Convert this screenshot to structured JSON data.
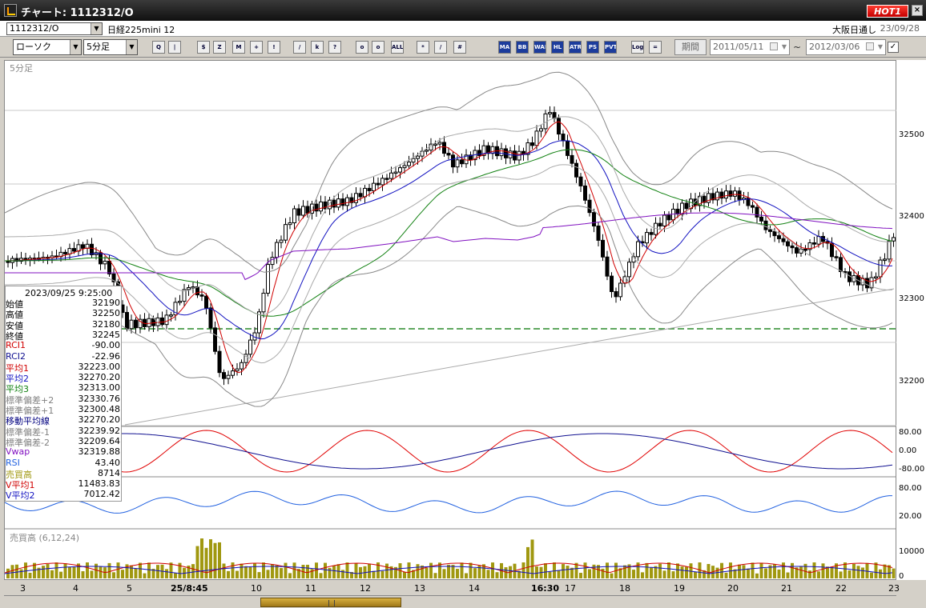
{
  "window": {
    "title": "チャート: 1112312/O",
    "hot_label": "HOT1"
  },
  "symbol_row": {
    "code": "1112312/O",
    "name": "日経225mini 12",
    "exchange": "大阪日通し",
    "date": "23/09/28"
  },
  "toolbar": {
    "chart_type": "ローソク",
    "interval": "5分足",
    "icons": [
      "Q",
      "|",
      "$",
      "Z",
      "M",
      "+",
      "!",
      "/",
      "k",
      "?",
      "o",
      "o",
      "ALL",
      "*",
      "/",
      "#",
      "MA",
      "BB",
      "WAE",
      "HL",
      "ATR",
      "PS",
      "PVT",
      "Log",
      "="
    ],
    "period_label": "期間",
    "from_date": "2011/05/11",
    "to_date": "2012/03/06",
    "tilde": "~"
  },
  "chart": {
    "main_label": "5分足",
    "volume_label": "売買高 (6,12,24)",
    "price_scale": [
      "32500",
      "32400",
      "32300",
      "32200"
    ],
    "osc1_scale": [
      "80.00",
      "0.00",
      "-80.00"
    ],
    "osc2_scale": [
      "80.00",
      "20.00"
    ],
    "vol_scale": [
      "10000",
      "0"
    ],
    "date_labels": [
      "3",
      "4",
      "5",
      "25/8:45",
      "10",
      "11",
      "12",
      "13",
      "14",
      "16:30",
      "17",
      "18",
      "19",
      "20",
      "21",
      "22",
      "23"
    ],
    "colors": {
      "candle": "#000000",
      "ma1": "#d00000",
      "ma2": "#1010c0",
      "ma3": "#108010",
      "vwap": "#8010c0",
      "volume": "#a09810",
      "rci1": "#e00000",
      "rci2": "#101090",
      "rsi": "#2060e0"
    }
  },
  "info_panel": {
    "timestamp": "2023/09/25  9:25:00",
    "rows": [
      {
        "label": "始値",
        "value": "32190",
        "color": "#000000"
      },
      {
        "label": "高値",
        "value": "32250",
        "color": "#000000"
      },
      {
        "label": "安値",
        "value": "32180",
        "color": "#000000"
      },
      {
        "label": "終値",
        "value": "32245",
        "color": "#000000"
      },
      {
        "label": "RCI1",
        "value": "-90.00",
        "color": "#d00000"
      },
      {
        "label": "RCI2",
        "value": "-22.96",
        "color": "#101090"
      },
      {
        "label": "平均1",
        "value": "32223.00",
        "color": "#d00000"
      },
      {
        "label": "平均2",
        "value": "32270.20",
        "color": "#1010c0"
      },
      {
        "label": "平均3",
        "value": "32313.00",
        "color": "#108010"
      },
      {
        "label": "標準偏差+2",
        "value": "32330.76",
        "color": "#808080"
      },
      {
        "label": "標準偏差+1",
        "value": "32300.48",
        "color": "#808080"
      },
      {
        "label": "移動平均線",
        "value": "32270.20",
        "color": "#000080"
      },
      {
        "label": "標準偏差-1",
        "value": "32239.92",
        "color": "#808080"
      },
      {
        "label": "標準偏差-2",
        "value": "32209.64",
        "color": "#808080"
      },
      {
        "label": "Vwap",
        "value": "32319.88",
        "color": "#8010c0"
      },
      {
        "label": "RSI",
        "value": "43.40",
        "color": "#2060e0"
      },
      {
        "label": "売買高",
        "value": "8714",
        "color": "#a09810"
      },
      {
        "label": "V平均1",
        "value": "11483.83",
        "color": "#d00000"
      },
      {
        "label": "V平均2",
        "value": "7012.42",
        "color": "#1010c0"
      }
    ]
  }
}
